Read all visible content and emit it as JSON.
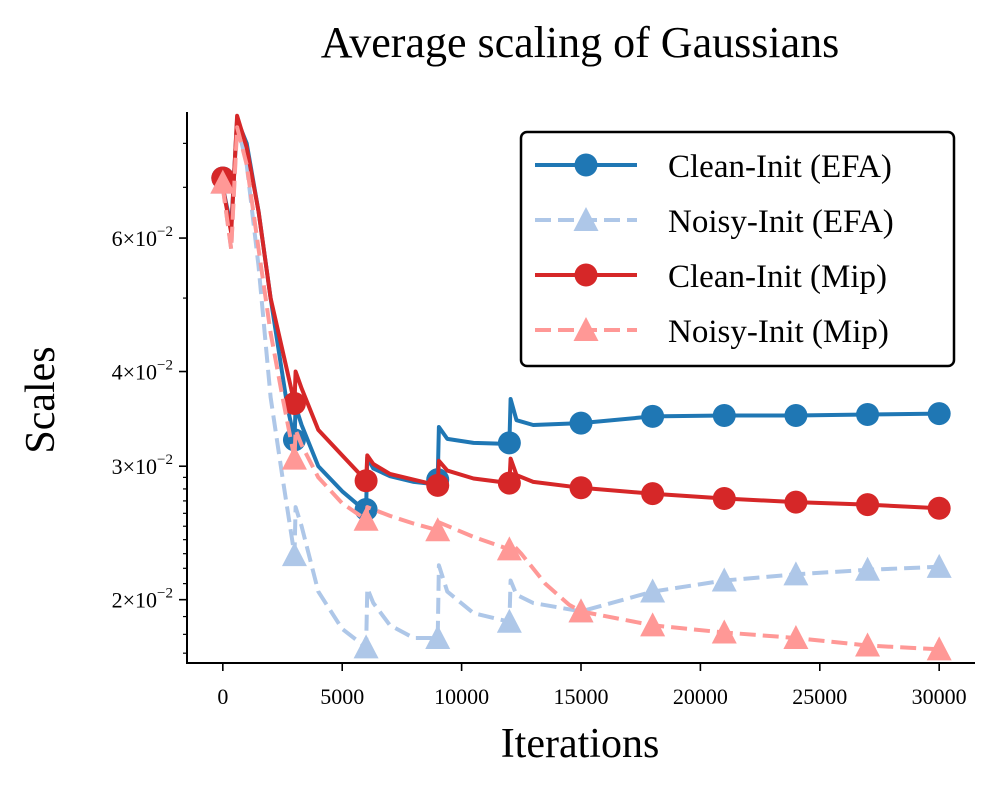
{
  "chart_data": {
    "type": "line",
    "title": "Average scaling of Gaussians",
    "xlabel": "Iterations",
    "ylabel": "Scales",
    "xlim": [
      -1500,
      31500
    ],
    "ylim": [
      0.0165,
      0.088
    ],
    "yscale": "log",
    "grid": false,
    "legend_position": "top-right",
    "x_ticks": [
      0,
      5000,
      10000,
      15000,
      20000,
      25000,
      30000
    ],
    "x_tick_labels": [
      "0",
      "5000",
      "10000",
      "15000",
      "20000",
      "25000",
      "30000"
    ],
    "y_ticks": [
      0.02,
      0.03,
      0.04,
      0.06
    ],
    "y_tick_mantissas": [
      "2",
      "3",
      "4",
      "6"
    ],
    "y_tick_base": "10",
    "y_tick_exponent": "−2",
    "y_minor_ticks": [
      0.05,
      0.07,
      0.08
    ],
    "series": [
      {
        "name": "Clean-Init (EFA)",
        "color": "#1f77b4",
        "style": "solid",
        "marker": "circle",
        "x": [
          0,
          3000,
          6000,
          9000,
          12000,
          15000,
          18000,
          21000,
          24000,
          27000,
          30000
        ],
        "values": [
          0.072,
          0.0325,
          0.0263,
          0.0288,
          0.0322,
          0.0342,
          0.0349,
          0.035,
          0.035,
          0.0351,
          0.0352
        ],
        "curve": [
          [
            0,
            0.07
          ],
          [
            350,
            0.062
          ],
          [
            600,
            0.086
          ],
          [
            1000,
            0.08
          ],
          [
            1500,
            0.065
          ],
          [
            2000,
            0.05
          ],
          [
            2700,
            0.036
          ],
          [
            3000,
            0.0325
          ],
          [
            3050,
            0.036
          ],
          [
            3300,
            0.034
          ],
          [
            4000,
            0.03
          ],
          [
            5000,
            0.0278
          ],
          [
            5900,
            0.0263
          ],
          [
            6000,
            0.0263
          ],
          [
            6050,
            0.0308
          ],
          [
            6300,
            0.0298
          ],
          [
            7000,
            0.0291
          ],
          [
            8000,
            0.0286
          ],
          [
            8900,
            0.0284
          ],
          [
            9000,
            0.0288
          ],
          [
            9050,
            0.0338
          ],
          [
            9400,
            0.0326
          ],
          [
            10500,
            0.0322
          ],
          [
            11900,
            0.0321
          ],
          [
            12000,
            0.0322
          ],
          [
            12050,
            0.0368
          ],
          [
            12300,
            0.0345
          ],
          [
            13000,
            0.034
          ],
          [
            15000,
            0.0342
          ],
          [
            18000,
            0.0349
          ],
          [
            21000,
            0.035
          ],
          [
            24000,
            0.035
          ],
          [
            27000,
            0.0351
          ],
          [
            30000,
            0.0352
          ]
        ]
      },
      {
        "name": "Noisy-Init (EFA)",
        "color": "#aec7e8",
        "style": "dashed",
        "marker": "triangle",
        "x": [
          0,
          3000,
          6000,
          9000,
          12000,
          15000,
          18000,
          21000,
          24000,
          27000,
          30000
        ],
        "values": [
          0.071,
          0.0229,
          0.0173,
          0.0178,
          0.0187,
          0.0193,
          0.0205,
          0.0212,
          0.0216,
          0.0219,
          0.0221
        ],
        "curve": [
          [
            0,
            0.07
          ],
          [
            350,
            0.058
          ],
          [
            600,
            0.085
          ],
          [
            1000,
            0.075
          ],
          [
            1500,
            0.055
          ],
          [
            2000,
            0.037
          ],
          [
            2500,
            0.029
          ],
          [
            3000,
            0.0229
          ],
          [
            3050,
            0.0265
          ],
          [
            3300,
            0.025
          ],
          [
            4000,
            0.0205
          ],
          [
            5000,
            0.0183
          ],
          [
            6000,
            0.0173
          ],
          [
            6050,
            0.0207
          ],
          [
            6300,
            0.0198
          ],
          [
            7000,
            0.0185
          ],
          [
            8000,
            0.0178
          ],
          [
            9000,
            0.0178
          ],
          [
            9050,
            0.0222
          ],
          [
            9400,
            0.0205
          ],
          [
            10500,
            0.0192
          ],
          [
            12000,
            0.0187
          ],
          [
            12050,
            0.0212
          ],
          [
            12300,
            0.0203
          ],
          [
            13000,
            0.0198
          ],
          [
            15000,
            0.0193
          ],
          [
            18000,
            0.0205
          ],
          [
            21000,
            0.0212
          ],
          [
            24000,
            0.0216
          ],
          [
            27000,
            0.0219
          ],
          [
            30000,
            0.0221
          ]
        ]
      },
      {
        "name": "Clean-Init (Mip)",
        "color": "#d62728",
        "style": "solid",
        "marker": "circle",
        "x": [
          0,
          3000,
          6000,
          9000,
          12000,
          15000,
          18000,
          21000,
          24000,
          27000,
          30000
        ],
        "values": [
          0.072,
          0.0363,
          0.0287,
          0.0283,
          0.0285,
          0.0281,
          0.0276,
          0.0272,
          0.0269,
          0.0267,
          0.0264
        ],
        "curve": [
          [
            0,
            0.07
          ],
          [
            350,
            0.061
          ],
          [
            600,
            0.087
          ],
          [
            1000,
            0.079
          ],
          [
            1500,
            0.065
          ],
          [
            2000,
            0.05
          ],
          [
            2700,
            0.04
          ],
          [
            3000,
            0.0363
          ],
          [
            3050,
            0.04
          ],
          [
            3300,
            0.038
          ],
          [
            4000,
            0.0335
          ],
          [
            5000,
            0.031
          ],
          [
            6000,
            0.0287
          ],
          [
            6050,
            0.031
          ],
          [
            6300,
            0.0302
          ],
          [
            7000,
            0.0293
          ],
          [
            8000,
            0.0288
          ],
          [
            9000,
            0.0283
          ],
          [
            9050,
            0.0305
          ],
          [
            9400,
            0.0296
          ],
          [
            10500,
            0.0289
          ],
          [
            12000,
            0.0285
          ],
          [
            12050,
            0.0307
          ],
          [
            12300,
            0.0292
          ],
          [
            13000,
            0.0286
          ],
          [
            15000,
            0.0281
          ],
          [
            18000,
            0.0276
          ],
          [
            21000,
            0.0272
          ],
          [
            24000,
            0.0269
          ],
          [
            27000,
            0.0267
          ],
          [
            30000,
            0.0264
          ]
        ]
      },
      {
        "name": "Noisy-Init (Mip)",
        "color": "#ff9896",
        "style": "dashed",
        "marker": "triangle",
        "x": [
          0,
          3000,
          6000,
          9000,
          12000,
          15000,
          18000,
          21000,
          24000,
          27000,
          30000
        ],
        "values": [
          0.071,
          0.0307,
          0.0255,
          0.0247,
          0.0233,
          0.0193,
          0.0185,
          0.0181,
          0.0178,
          0.0174,
          0.0172
        ],
        "curve": [
          [
            0,
            0.07
          ],
          [
            350,
            0.058
          ],
          [
            600,
            0.084
          ],
          [
            1000,
            0.075
          ],
          [
            1500,
            0.058
          ],
          [
            2000,
            0.045
          ],
          [
            2500,
            0.037
          ],
          [
            3000,
            0.0307
          ],
          [
            3050,
            0.0335
          ],
          [
            3300,
            0.032
          ],
          [
            4000,
            0.029
          ],
          [
            5000,
            0.0268
          ],
          [
            6000,
            0.0255
          ],
          [
            6050,
            0.0265
          ],
          [
            7000,
            0.0258
          ],
          [
            8000,
            0.0252
          ],
          [
            9000,
            0.0247
          ],
          [
            9050,
            0.0253
          ],
          [
            10500,
            0.0242
          ],
          [
            12000,
            0.0233
          ],
          [
            12050,
            0.0238
          ],
          [
            12500,
            0.023
          ],
          [
            13500,
            0.021
          ],
          [
            14500,
            0.0197
          ],
          [
            15000,
            0.0193
          ],
          [
            18000,
            0.0185
          ],
          [
            21000,
            0.0181
          ],
          [
            24000,
            0.0178
          ],
          [
            27000,
            0.0174
          ],
          [
            30000,
            0.0172
          ]
        ]
      }
    ]
  }
}
